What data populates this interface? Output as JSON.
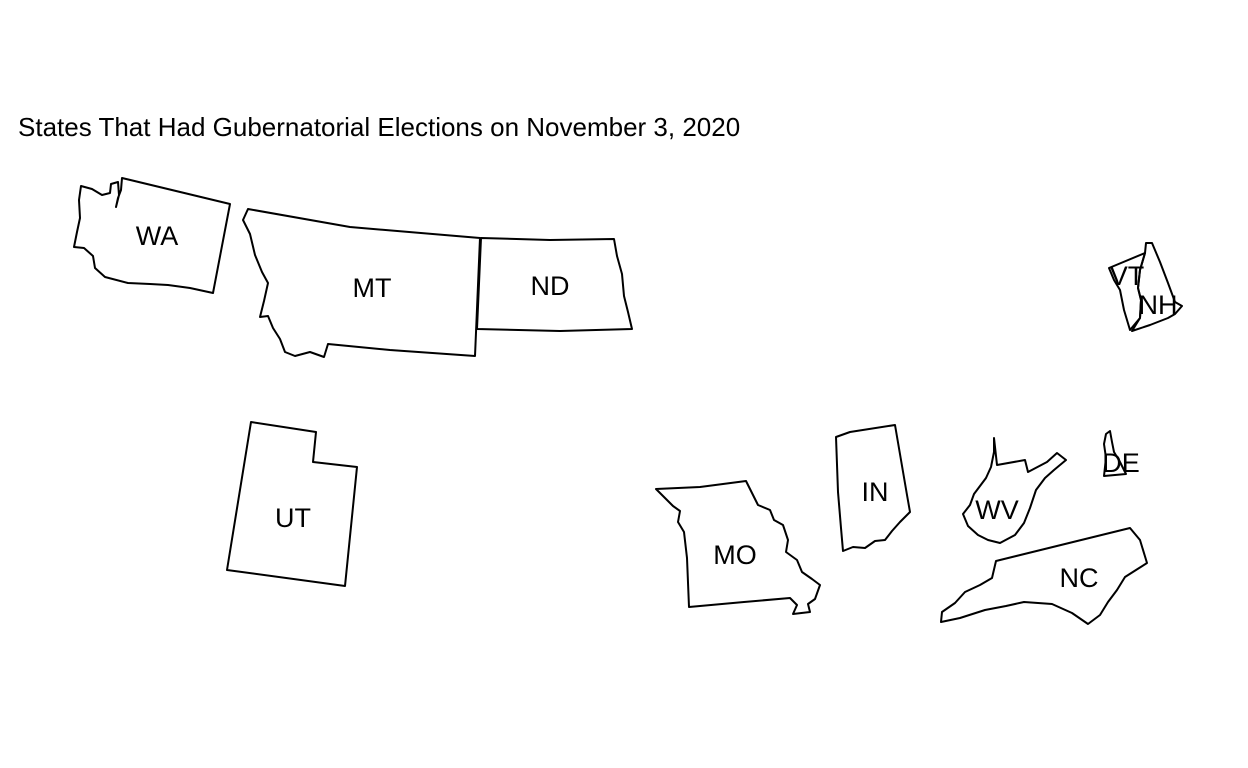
{
  "title": "States That Had Gubernatorial Elections on November 3, 2020",
  "style": {
    "stroke": "#000000",
    "fill": "none",
    "background": "#ffffff"
  },
  "states": [
    {
      "code": "WA",
      "label": "WA"
    },
    {
      "code": "MT",
      "label": "MT"
    },
    {
      "code": "ND",
      "label": "ND"
    },
    {
      "code": "UT",
      "label": "UT"
    },
    {
      "code": "MO",
      "label": "MO"
    },
    {
      "code": "IN",
      "label": "IN"
    },
    {
      "code": "WV",
      "label": "WV"
    },
    {
      "code": "DE",
      "label": "DE"
    },
    {
      "code": "NC",
      "label": "NC"
    },
    {
      "code": "VT",
      "label": "VT"
    },
    {
      "code": "NH",
      "label": "NH"
    }
  ]
}
